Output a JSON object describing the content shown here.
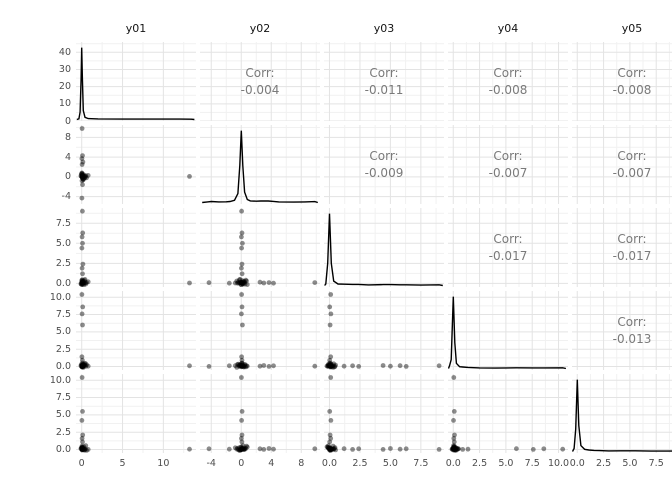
{
  "chart_data": {
    "type": "scatter",
    "subtype": "scatterplot-matrix-ggpairs",
    "variables": [
      "y01",
      "y02",
      "y03",
      "y04",
      "y05"
    ],
    "corr_label": "Corr:",
    "correlations": [
      {
        "row": 0,
        "col": 1,
        "pair": "y01-y02",
        "value": "-0.004"
      },
      {
        "row": 0,
        "col": 2,
        "pair": "y01-y03",
        "value": "-0.011"
      },
      {
        "row": 0,
        "col": 3,
        "pair": "y01-y04",
        "value": "-0.008"
      },
      {
        "row": 0,
        "col": 4,
        "pair": "y01-y05",
        "value": "-0.008"
      },
      {
        "row": 1,
        "col": 2,
        "pair": "y02-y03",
        "value": "-0.009"
      },
      {
        "row": 1,
        "col": 3,
        "pair": "y02-y04",
        "value": "-0.007"
      },
      {
        "row": 1,
        "col": 4,
        "pair": "y02-y05",
        "value": "-0.007"
      },
      {
        "row": 2,
        "col": 3,
        "pair": "y03-y04",
        "value": "-0.017"
      },
      {
        "row": 2,
        "col": 4,
        "pair": "y03-y05",
        "value": "-0.017"
      },
      {
        "row": 3,
        "col": 4,
        "pair": "y04-y05",
        "value": "-0.013"
      }
    ],
    "axes": {
      "y01": {
        "range": [
          -0.7,
          14.0
        ],
        "ticks": [
          0,
          5,
          10
        ],
        "tick_labels": [
          "0",
          "5",
          "10"
        ]
      },
      "y02": {
        "range": [
          -5.5,
          10.5
        ],
        "ticks": [
          -4,
          0,
          4,
          8
        ],
        "tick_labels": [
          "-4",
          "0",
          "4",
          "8"
        ]
      },
      "y03": {
        "range": [
          -0.45,
          9.4
        ],
        "ticks": [
          0,
          2.5,
          5,
          7.5
        ],
        "tick_labels": [
          "0.0",
          "2.5",
          "5.0",
          "7.5"
        ]
      },
      "y04": {
        "range": [
          -0.5,
          10.9
        ],
        "ticks": [
          0,
          2.5,
          5,
          7.5,
          10
        ],
        "tick_labels": [
          "0.0",
          "2.5",
          "5.0",
          "7.5",
          "10.0"
        ]
      },
      "y05": {
        "range": [
          -0.5,
          10.9
        ],
        "ticks": [
          0,
          2.5,
          5,
          7.5,
          10
        ],
        "tick_labels": [
          "0.0",
          "2.5",
          "5.0",
          "7.5",
          "10.0"
        ]
      }
    },
    "density_axis": {
      "range": [
        0,
        46
      ],
      "ticks": [
        0,
        10,
        20,
        30,
        40
      ],
      "tick_labels": [
        "0",
        "10",
        "20",
        "30",
        "40"
      ]
    },
    "densities": {
      "y01": [
        [
          -0.6,
          0
        ],
        [
          -0.35,
          0.01
        ],
        [
          -0.2,
          0.1
        ],
        [
          -0.08,
          0.55
        ],
        [
          0,
          0.97
        ],
        [
          0.08,
          0.55
        ],
        [
          0.2,
          0.12
        ],
        [
          0.4,
          0.03
        ],
        [
          0.8,
          0.012
        ],
        [
          2,
          0.008
        ],
        [
          5,
          0.006
        ],
        [
          9,
          0.005
        ],
        [
          12,
          0.005
        ],
        [
          13.4,
          0.004
        ],
        [
          13.8,
          0
        ]
      ],
      "y02": [
        [
          -5.2,
          0
        ],
        [
          -4.5,
          0.008
        ],
        [
          -4,
          0.014
        ],
        [
          -3,
          0.008
        ],
        [
          -2,
          0.01
        ],
        [
          -1.5,
          0.014
        ],
        [
          -0.9,
          0.03
        ],
        [
          -0.45,
          0.12
        ],
        [
          -0.2,
          0.5
        ],
        [
          0,
          0.97
        ],
        [
          0.2,
          0.5
        ],
        [
          0.45,
          0.14
        ],
        [
          0.8,
          0.04
        ],
        [
          1.2,
          0.022
        ],
        [
          2,
          0.018
        ],
        [
          2.6,
          0.02
        ],
        [
          3,
          0.022
        ],
        [
          3.6,
          0.02
        ],
        [
          4.3,
          0.015
        ],
        [
          5,
          0.008
        ],
        [
          7,
          0.006
        ],
        [
          8.5,
          0.008
        ],
        [
          9.8,
          0.012
        ],
        [
          10.2,
          0
        ]
      ],
      "y03": [
        [
          -0.4,
          0
        ],
        [
          -0.3,
          0.02
        ],
        [
          -0.15,
          0.3
        ],
        [
          0,
          0.97
        ],
        [
          0.15,
          0.3
        ],
        [
          0.35,
          0.06
        ],
        [
          0.7,
          0.02
        ],
        [
          1.2,
          0.018
        ],
        [
          1.9,
          0.015
        ],
        [
          2.4,
          0.015
        ],
        [
          3.2,
          0.008
        ],
        [
          4.4,
          0.012
        ],
        [
          5,
          0.012
        ],
        [
          5.8,
          0.01
        ],
        [
          6.3,
          0.01
        ],
        [
          7.5,
          0.006
        ],
        [
          9,
          0.01
        ],
        [
          9.3,
          0
        ]
      ],
      "y04": [
        [
          -0.45,
          0
        ],
        [
          -0.35,
          0.04
        ],
        [
          -0.2,
          0.12
        ],
        [
          0,
          0.97
        ],
        [
          0.15,
          0.35
        ],
        [
          0.3,
          0.07
        ],
        [
          0.6,
          0.025
        ],
        [
          0.9,
          0.02
        ],
        [
          1.4,
          0.015
        ],
        [
          2.5,
          0.008
        ],
        [
          4,
          0.006
        ],
        [
          6,
          0.01
        ],
        [
          7.6,
          0.008
        ],
        [
          8.6,
          0.008
        ],
        [
          10.4,
          0.01
        ],
        [
          10.7,
          0
        ]
      ],
      "y05": [
        [
          -0.45,
          0
        ],
        [
          -0.3,
          0.04
        ],
        [
          -0.15,
          0.3
        ],
        [
          0,
          0.97
        ],
        [
          0.15,
          0.35
        ],
        [
          0.35,
          0.08
        ],
        [
          0.7,
          0.03
        ],
        [
          1.1,
          0.02
        ],
        [
          1.6,
          0.015
        ],
        [
          2.1,
          0.012
        ],
        [
          3,
          0.008
        ],
        [
          4.2,
          0.01
        ],
        [
          5.5,
          0.01
        ],
        [
          7,
          0.006
        ],
        [
          8.5,
          0.006
        ],
        [
          10.4,
          0.008
        ],
        [
          10.7,
          0
        ]
      ]
    },
    "observations": [
      [
        0.05,
        -0.1,
        0.08,
        0.02,
        -0.06
      ],
      [
        -0.1,
        0.2,
        -0.05,
        0.1,
        0.12
      ],
      [
        0.12,
        0.35,
        0.1,
        -0.08,
        0.03
      ],
      [
        0.3,
        -0.3,
        0.02,
        0.15,
        -0.1
      ],
      [
        -0.05,
        0.5,
        -0.1,
        0.3,
        0.2
      ],
      [
        0.2,
        -0.6,
        0.3,
        -0.12,
        0.05
      ],
      [
        0.02,
        0.8,
        -0.15,
        0.05,
        0.35
      ],
      [
        0.4,
        -0.15,
        0.5,
        0.2,
        -0.05
      ],
      [
        0.08,
        0.1,
        0.02,
        0.5,
        0.1
      ],
      [
        0.5,
        0.25,
        -0.08,
        0.02,
        0.55
      ],
      [
        0.15,
        -0.4,
        0.15,
        0.35,
        0.02
      ],
      [
        0.01,
        0.6,
        0.4,
        -0.05,
        0.15
      ],
      [
        0.25,
        0.02,
        -0.2,
        0.08,
        0.4
      ],
      [
        0.6,
        -0.2,
        0.1,
        0.25,
        -0.12
      ],
      [
        0.1,
        0.4,
        0.25,
        0.02,
        0.08
      ],
      [
        0.03,
        -0.8,
        0.05,
        0.12,
        0.25
      ],
      [
        0.35,
        0.15,
        0.35,
        0.4,
        0.05
      ],
      [
        0.07,
        -0.05,
        -0.1,
        0.18,
        0.3
      ],
      [
        0.8,
        0.3,
        0.2,
        0.05,
        0.02
      ],
      [
        0.18,
        -0.5,
        0.02,
        0.3,
        0.18
      ],
      [
        0.04,
        0.7,
        0.3,
        0.1,
        0.5
      ],
      [
        0.45,
        0.05,
        0.08,
        0.45,
        0.1
      ],
      [
        0.09,
        -0.25,
        0.45,
        0.02,
        0.28
      ],
      [
        0.22,
        0.45,
        0.12,
        0.22,
        0.02
      ],
      [
        13.2,
        0.1,
        0.05,
        0.1,
        0.05
      ],
      [
        0.05,
        9.8,
        0.1,
        0.05,
        0.1
      ],
      [
        0.1,
        4.3,
        0.02,
        0.1,
        0.05
      ],
      [
        0.02,
        3.7,
        0.1,
        0.02,
        0.15
      ],
      [
        0.15,
        3.0,
        0.05,
        0.15,
        0.02
      ],
      [
        0.05,
        2.5,
        0.15,
        0.05,
        0.1
      ],
      [
        0.1,
        -1.6,
        0.02,
        0.1,
        0.05
      ],
      [
        0.02,
        -4.3,
        0.08,
        0.02,
        0.1
      ],
      [
        0.08,
        0.05,
        9.0,
        0.1,
        0.02
      ],
      [
        0.12,
        0.1,
        6.3,
        0.02,
        0.1
      ],
      [
        0.05,
        0.02,
        5.8,
        0.12,
        0.05
      ],
      [
        0.1,
        0.15,
        5.0,
        0.05,
        0.15
      ],
      [
        0.02,
        0.05,
        4.4,
        0.15,
        0.02
      ],
      [
        0.15,
        0.1,
        2.4,
        0.02,
        0.1
      ],
      [
        0.05,
        0.02,
        1.9,
        0.1,
        0.02
      ],
      [
        0.1,
        0.12,
        1.2,
        0.05,
        0.12
      ],
      [
        0.02,
        0.05,
        0.1,
        10.4,
        0.05
      ],
      [
        0.12,
        0.1,
        0.02,
        8.6,
        0.1
      ],
      [
        0.05,
        0.02,
        0.12,
        7.6,
        0.02
      ],
      [
        0.1,
        0.15,
        0.05,
        6.0,
        0.12
      ],
      [
        0.02,
        0.05,
        0.1,
        1.4,
        0.05
      ],
      [
        0.08,
        0.1,
        0.02,
        0.9,
        0.02
      ],
      [
        0.05,
        0.02,
        0.1,
        0.05,
        10.4
      ],
      [
        0.1,
        0.12,
        0.02,
        0.1,
        5.5
      ],
      [
        0.02,
        0.05,
        0.12,
        0.02,
        4.2
      ],
      [
        0.12,
        0.1,
        0.05,
        0.12,
        2.1
      ],
      [
        0.05,
        0.02,
        0.1,
        0.05,
        1.6
      ],
      [
        0.1,
        0.08,
        0.02,
        0.1,
        1.1
      ]
    ],
    "style": {
      "background": "#ffffff",
      "grid_major": "#e3e3e3",
      "grid_minor": "#f1f1f1",
      "point_color": "#000000",
      "point_opacity": 0.45,
      "density_line_color": "#000000",
      "corr_text_color": "#7a7a7a",
      "tick_text_color": "#4d4d4d",
      "strip_text_color": "#141414"
    }
  }
}
